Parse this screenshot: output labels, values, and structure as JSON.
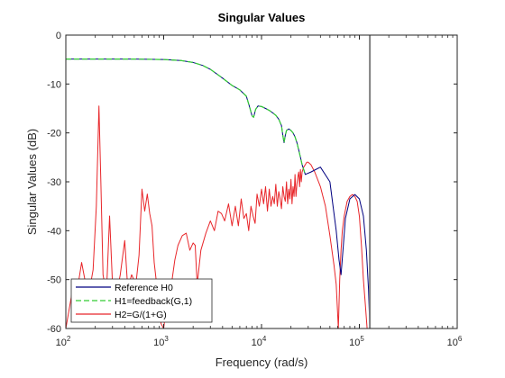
{
  "chart_data": {
    "type": "line",
    "title": "Singular Values",
    "xlabel": "Frequency (rad/s)",
    "ylabel": "Singular Values (dB)",
    "xscale": "log",
    "xlim": [
      100,
      1000000
    ],
    "ylim": [
      -60,
      0
    ],
    "x_ticks": [
      {
        "value": 100,
        "base": "10",
        "exp": "2"
      },
      {
        "value": 1000,
        "base": "10",
        "exp": "3"
      },
      {
        "value": 10000,
        "base": "10",
        "exp": "4"
      },
      {
        "value": 100000,
        "base": "10",
        "exp": "5"
      },
      {
        "value": 1000000,
        "base": "10",
        "exp": "6"
      }
    ],
    "y_ticks": [
      {
        "value": 0,
        "label": "0"
      },
      {
        "value": -10,
        "label": "-10"
      },
      {
        "value": -20,
        "label": "-20"
      },
      {
        "value": -30,
        "label": "-30"
      },
      {
        "value": -40,
        "label": "-40"
      },
      {
        "value": -50,
        "label": "-50"
      },
      {
        "value": -60,
        "label": "-60"
      }
    ],
    "grid": false,
    "legend_position": "bottom-left",
    "vertical_line": {
      "x": 128000,
      "color": "#808080"
    },
    "series": [
      {
        "name": "Reference H0",
        "color": "#000080",
        "dash": "solid",
        "x": [
          100,
          500,
          1000,
          1500,
          2000,
          2500,
          3000,
          4000,
          5000,
          6000,
          7000,
          7500,
          8000,
          8300,
          8700,
          9200,
          10000,
          11000,
          12000,
          13000,
          14000,
          15000,
          16000,
          16500,
          17000,
          17500,
          18000,
          19000,
          20000,
          21000,
          22000,
          23000,
          24000,
          25000,
          26000,
          27000,
          28000,
          32000,
          40000,
          50000,
          58000,
          62000,
          65000,
          68000,
          72000,
          80000,
          90000,
          100000,
          110000,
          118000,
          124000,
          128000
        ],
        "y": [
          -4.9,
          -4.9,
          -5.0,
          -5.2,
          -5.6,
          -6.2,
          -7.0,
          -8.8,
          -10.3,
          -11.2,
          -12.5,
          -14.5,
          -16.5,
          -16.8,
          -15.2,
          -14.5,
          -14.6,
          -15.0,
          -15.4,
          -15.9,
          -16.4,
          -17.2,
          -18.5,
          -20.5,
          -22.0,
          -20.5,
          -19.5,
          -19.2,
          -19.5,
          -20.0,
          -20.8,
          -22.0,
          -23.5,
          -25.0,
          -26.5,
          -27.5,
          -28.5,
          -28.0,
          -27.0,
          -30.0,
          -40.0,
          -46.0,
          -49.0,
          -44.0,
          -37.5,
          -33.5,
          -32.6,
          -33.5,
          -37.0,
          -44.0,
          -52.0,
          -60.0
        ]
      },
      {
        "name": "H1=feedback(G,1)",
        "color": "#33cc33",
        "dash": "dashed",
        "x": [
          100,
          500,
          1000,
          1500,
          2000,
          2500,
          3000,
          4000,
          5000,
          6000,
          7000,
          7500,
          8000,
          8300,
          8700,
          9200,
          10000,
          11000,
          12000,
          13000,
          14000,
          15000,
          16000,
          16500,
          17000,
          17500,
          18000,
          19000,
          20000,
          21000,
          22000,
          23000,
          24000,
          25000,
          26000,
          27000,
          28000
        ],
        "y": [
          -4.9,
          -4.9,
          -5.0,
          -5.2,
          -5.6,
          -6.2,
          -7.0,
          -8.8,
          -10.3,
          -11.2,
          -12.5,
          -14.5,
          -16.5,
          -16.8,
          -15.2,
          -14.5,
          -14.6,
          -15.0,
          -15.4,
          -15.9,
          -16.4,
          -17.2,
          -18.5,
          -20.5,
          -22.0,
          -20.5,
          -19.5,
          -19.2,
          -19.5,
          -20.0,
          -20.8,
          -22.0,
          -23.5,
          -25.0,
          -26.5,
          -27.5,
          -28.5
        ]
      },
      {
        "name": "H2=G/(1+G)",
        "color": "#e8262a",
        "dash": "solid",
        "x": [
          100,
          115,
          130,
          145,
          160,
          175,
          190,
          205,
          218,
          228,
          240,
          260,
          280,
          300,
          330,
          360,
          400,
          430,
          470,
          520,
          560,
          600,
          640,
          680,
          720,
          760,
          800,
          870,
          940,
          1000,
          1100,
          1200,
          1300,
          1400,
          1550,
          1700,
          1850,
          2000,
          2100,
          2200,
          2400,
          2700,
          3000,
          3300,
          3600,
          3900,
          4200,
          4600,
          5000,
          5400,
          5800,
          6200,
          6600,
          7000,
          7400,
          7800,
          8200,
          8600,
          9000,
          9500,
          10000,
          10500,
          11000,
          11500,
          12000,
          12500,
          13000,
          13500,
          14000,
          14500,
          15000,
          15500,
          16000,
          16500,
          17000,
          17500,
          18000,
          18500,
          19000,
          19500,
          20000,
          20500,
          21000,
          21500,
          22000,
          22500,
          23000,
          23500,
          24000,
          24500,
          25000,
          25500,
          26000,
          27000,
          28000,
          29000,
          30000,
          32000,
          35000,
          40000,
          45000,
          50000,
          55000,
          58000,
          61000,
          63000,
          65000,
          67000,
          70000,
          75000,
          80000,
          85000,
          90000,
          95000,
          100000,
          105000,
          110000,
          115000,
          120000,
          125000,
          128000
        ],
        "y": [
          -60.0,
          -53.0,
          -52.5,
          -46.5,
          -51.0,
          -52.0,
          -48.0,
          -35.0,
          -14.5,
          -30.0,
          -49.0,
          -53.0,
          -37.0,
          -51.0,
          -53.0,
          -49.0,
          -42.0,
          -52.0,
          -49.0,
          -51.0,
          -45.0,
          -31.5,
          -36.0,
          -32.5,
          -36.5,
          -39.0,
          -46.5,
          -53.0,
          -59.0,
          -60.0,
          -53.0,
          -51.0,
          -46.0,
          -43.0,
          -41.0,
          -40.5,
          -44.0,
          -42.5,
          -43.0,
          -51.0,
          -44.0,
          -40.5,
          -38.0,
          -40.0,
          -36.0,
          -36.5,
          -38.0,
          -34.5,
          -39.0,
          -35.0,
          -39.0,
          -33.5,
          -37.5,
          -36.5,
          -40.0,
          -35.0,
          -37.0,
          -38.5,
          -32.5,
          -35.0,
          -31.5,
          -34.5,
          -31.0,
          -36.0,
          -31.5,
          -35.0,
          -33.0,
          -34.5,
          -30.5,
          -35.0,
          -32.0,
          -33.5,
          -35.5,
          -31.0,
          -33.0,
          -34.0,
          -30.0,
          -34.5,
          -31.5,
          -33.5,
          -29.5,
          -34.5,
          -31.0,
          -33.0,
          -28.5,
          -33.0,
          -30.5,
          -29.0,
          -28.0,
          -31.0,
          -27.5,
          -30.0,
          -28.0,
          -27.0,
          -26.5,
          -26.0,
          -26.0,
          -26.5,
          -28.0,
          -31.0,
          -35.0,
          -41.0,
          -47.0,
          -51.0,
          -60.0,
          -50.0,
          -44.0,
          -40.0,
          -37.0,
          -34.0,
          -33.0,
          -32.6,
          -33.0,
          -34.0,
          -37.0,
          -43.0,
          -50.0,
          -55.0,
          -60.0,
          -60.0,
          -60.0
        ]
      }
    ]
  }
}
